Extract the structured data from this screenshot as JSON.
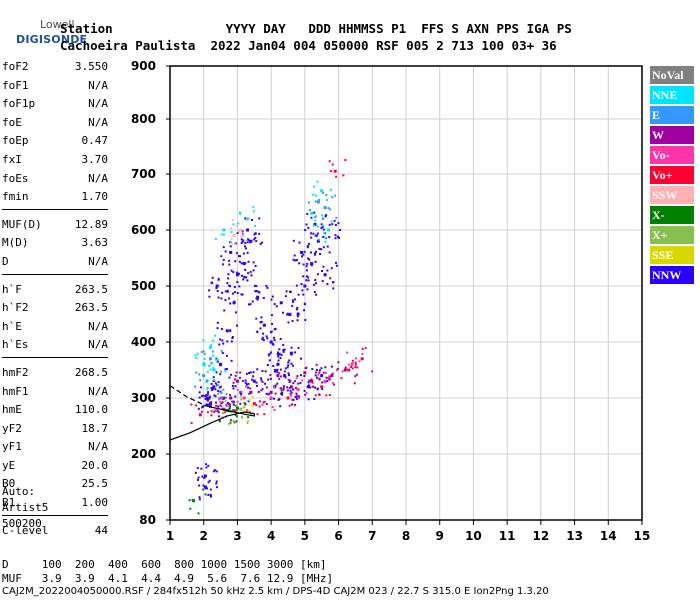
{
  "logo": {
    "top": "Lowell",
    "brand": "DIGISONDE"
  },
  "header": {
    "row1": "Station               YYYY DAY   DDD HHMMSS P1  FFS S AXN PPS IGA PS",
    "row2": "Cachoeira Paulista  2022 Jan04 004 050000 RSF 005 2 713 100 03+ 36"
  },
  "params_group1": [
    {
      "key": "foF2",
      "value": "3.550"
    },
    {
      "key": "foF1",
      "value": "N/A"
    },
    {
      "key": "foF1p",
      "value": "N/A"
    },
    {
      "key": "foE",
      "value": "N/A"
    },
    {
      "key": "foEp",
      "value": "0.47"
    },
    {
      "key": "fxI",
      "value": "3.70"
    },
    {
      "key": "foEs",
      "value": "N/A"
    },
    {
      "key": "fmin",
      "value": "1.70"
    }
  ],
  "params_group2": [
    {
      "key": "MUF(D)",
      "value": "12.89"
    },
    {
      "key": "M(D)",
      "value": "3.63"
    },
    {
      "key": "D",
      "value": "N/A"
    }
  ],
  "params_group3": [
    {
      "key": "h`F",
      "value": "263.5"
    },
    {
      "key": "h`F2",
      "value": "263.5"
    },
    {
      "key": "h`E",
      "value": "N/A"
    },
    {
      "key": "h`Es",
      "value": "N/A"
    }
  ],
  "params_group4": [
    {
      "key": "hmF2",
      "value": "268.5"
    },
    {
      "key": "hmF1",
      "value": "N/A"
    },
    {
      "key": "hmE",
      "value": "110.0"
    },
    {
      "key": "yF2",
      "value": "18.7"
    },
    {
      "key": "yF1",
      "value": "N/A"
    },
    {
      "key": "yE",
      "value": "20.0"
    },
    {
      "key": "B0",
      "value": "25.5"
    },
    {
      "key": "B1",
      "value": "1.00"
    }
  ],
  "params_group5": [
    {
      "key": "C-level",
      "value": "44"
    }
  ],
  "auto_block": [
    "Auto:",
    "Artist5",
    "500200"
  ],
  "legend": [
    {
      "label": "NoVal",
      "bg": "#808080",
      "fg": "#ffffff"
    },
    {
      "label": "NNE",
      "bg": "#00e5ff",
      "fg": "#ffffff"
    },
    {
      "label": "E",
      "bg": "#3399ff",
      "fg": "#ffffff"
    },
    {
      "label": "W",
      "bg": "#a000a0",
      "fg": "#ffffff"
    },
    {
      "label": "Vo-",
      "bg": "#ff33aa",
      "fg": "#ffffff"
    },
    {
      "label": "Vo+",
      "bg": "#ff0033",
      "fg": "#ffffff"
    },
    {
      "label": "SSW",
      "bg": "#ffb0b0",
      "fg": "#ffffff"
    },
    {
      "label": "X-",
      "bg": "#008000",
      "fg": "#ffffff"
    },
    {
      "label": "X+",
      "bg": "#88c050",
      "fg": "#ffffff"
    },
    {
      "label": "SSE",
      "bg": "#d8d800",
      "fg": "#ffffff"
    },
    {
      "label": "NNW",
      "bg": "#2a00ff",
      "fg": "#ffffff"
    }
  ],
  "footer": {
    "distance_row": "D     100  200  400  600  800 1000 1500 3000 [km]",
    "muf_row": "MUF   3.9  3.9  4.1  4.4  4.9  5.6  7.6 12.9 [MHz]",
    "info_row": "CAJ2M_2022004050000.RSF / 284fx512h 50 kHz 2.5 km / DPS-4D CAJ2M 023 / 22.7 S 315.0 E Ion2Png 1.3.20"
  },
  "chart_data": {
    "type": "scatter",
    "xlim": [
      1,
      15
    ],
    "ylim": [
      80,
      900
    ],
    "x_ticks": [
      "1",
      "2",
      "3",
      "4",
      "5",
      "6",
      "7",
      "8",
      "9",
      "10",
      "11",
      "12",
      "13",
      "14",
      "15"
    ],
    "y_ticks": [
      "80",
      "200",
      "300",
      "400",
      "500",
      "600",
      "700",
      "800",
      "900"
    ],
    "grid": true,
    "series": [
      {
        "name": "NNW",
        "color": "#2a00ff",
        "points": [
          [
            2.1,
            300
          ],
          [
            2.3,
            320
          ],
          [
            2.5,
            360
          ],
          [
            2.7,
            420
          ],
          [
            2.9,
            470
          ],
          [
            3.0,
            520
          ],
          [
            3.2,
            540
          ],
          [
            3.4,
            580
          ],
          [
            3.6,
            480
          ],
          [
            3.8,
            430
          ],
          [
            4.0,
            400
          ],
          [
            4.2,
            360
          ],
          [
            4.4,
            340
          ],
          [
            4.6,
            380
          ],
          [
            4.8,
            450
          ],
          [
            5.0,
            500
          ],
          [
            5.2,
            540
          ],
          [
            5.4,
            580
          ],
          [
            5.6,
            520
          ],
          [
            2.2,
            290
          ],
          [
            2.6,
            300
          ],
          [
            3.1,
            310
          ],
          [
            3.5,
            330
          ],
          [
            4.1,
            320
          ],
          [
            4.5,
            300
          ],
          [
            5.1,
            320
          ],
          [
            5.5,
            340
          ],
          [
            2.4,
            500
          ],
          [
            2.8,
            560
          ],
          [
            3.3,
            600
          ],
          [
            4.3,
            470
          ],
          [
            4.9,
            560
          ],
          [
            5.3,
            610
          ],
          [
            5.7,
            600
          ],
          [
            2.05,
            160
          ],
          [
            2.05,
            140
          ]
        ]
      },
      {
        "name": "NNE",
        "color": "#00e5ff",
        "points": [
          [
            2.0,
            360
          ],
          [
            2.2,
            390
          ],
          [
            2.1,
            330
          ],
          [
            2.6,
            600
          ],
          [
            3.3,
            620
          ],
          [
            5.2,
            630
          ],
          [
            5.5,
            670
          ],
          [
            5.7,
            600
          ],
          [
            2.3,
            350
          ]
        ]
      },
      {
        "name": "E",
        "color": "#3399ff",
        "points": [
          [
            2.0,
            340
          ],
          [
            2.2,
            370
          ],
          [
            5.4,
            650
          ],
          [
            5.6,
            640
          ],
          [
            2.5,
            300
          ]
        ]
      },
      {
        "name": "W",
        "color": "#a000a0",
        "points": [
          [
            2.2,
            285
          ],
          [
            2.8,
            300
          ],
          [
            3.4,
            310
          ],
          [
            4.0,
            310
          ],
          [
            4.6,
            320
          ],
          [
            5.2,
            330
          ],
          [
            5.8,
            340
          ],
          [
            6.2,
            350
          ],
          [
            3.0,
            330
          ],
          [
            4.2,
            340
          ],
          [
            5.0,
            345
          ]
        ]
      },
      {
        "name": "Vo-",
        "color": "#ff33aa",
        "points": [
          [
            2.4,
            280
          ],
          [
            3.2,
            300
          ],
          [
            4.0,
            300
          ],
          [
            4.8,
            315
          ],
          [
            5.6,
            330
          ],
          [
            6.4,
            360
          ]
        ]
      },
      {
        "name": "Vo+",
        "color": "#ff0033",
        "points": [
          [
            1.9,
            270
          ],
          [
            2.6,
            280
          ],
          [
            3.5,
            290
          ],
          [
            4.5,
            300
          ],
          [
            5.5,
            320
          ],
          [
            6.3,
            350
          ],
          [
            6.7,
            370
          ],
          [
            5.9,
            705
          ]
        ]
      },
      {
        "name": "SSW",
        "color": "#ffb0b0",
        "points": [
          [
            2.9,
            590
          ],
          [
            3.1,
            600
          ]
        ]
      },
      {
        "name": "X-",
        "color": "#008000",
        "points": [
          [
            1.7,
            115
          ],
          [
            2.7,
            278
          ],
          [
            3.0,
            282
          ]
        ]
      },
      {
        "name": "X+",
        "color": "#88c050",
        "points": [
          [
            2.8,
            276
          ],
          [
            3.1,
            280
          ]
        ]
      },
      {
        "name": "SSE",
        "color": "#d8d800",
        "points": [
          [
            3.2,
            284
          ]
        ]
      }
    ],
    "profile_solid": [
      [
        1.0,
        225
      ],
      [
        1.6,
        238
      ],
      [
        2.2,
        255
      ],
      [
        2.7,
        268
      ],
      [
        3.2,
        275
      ],
      [
        3.5,
        272
      ],
      [
        3.5,
        268
      ],
      [
        3.3,
        270
      ],
      [
        2.9,
        275
      ],
      [
        2.5,
        280
      ],
      [
        2.2,
        284
      ],
      [
        2.0,
        287
      ]
    ],
    "profile_dashed": [
      [
        1.0,
        322
      ],
      [
        1.5,
        302
      ],
      [
        2.0,
        288
      ]
    ]
  }
}
